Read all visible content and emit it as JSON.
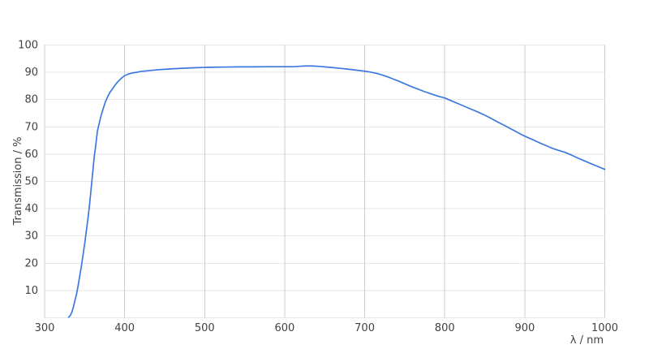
{
  "chart_data": {
    "type": "line",
    "title": "",
    "xlabel": "λ / nm",
    "ylabel": "Transmission / %",
    "xlim": [
      300,
      1000
    ],
    "ylim": [
      0,
      100
    ],
    "x_ticks": [
      300,
      400,
      500,
      600,
      700,
      800,
      900,
      1000
    ],
    "y_ticks": [
      10,
      20,
      30,
      40,
      50,
      60,
      70,
      80,
      90,
      100
    ],
    "grid": true,
    "legend": false,
    "series": [
      {
        "name": "transmission-curve",
        "color": "#3c78e0",
        "points": [
          [
            330,
            0.2
          ],
          [
            332,
            0.8
          ],
          [
            334,
            2
          ],
          [
            336,
            4
          ],
          [
            338,
            6.5
          ],
          [
            340,
            8.8
          ],
          [
            342,
            12
          ],
          [
            344,
            15.5
          ],
          [
            346,
            19
          ],
          [
            348,
            23
          ],
          [
            350,
            27
          ],
          [
            352,
            31.5
          ],
          [
            354,
            36
          ],
          [
            356,
            41
          ],
          [
            358,
            47
          ],
          [
            360,
            53
          ],
          [
            362,
            59
          ],
          [
            364,
            63.5
          ],
          [
            366,
            68.5
          ],
          [
            368,
            71
          ],
          [
            370,
            73.5
          ],
          [
            373,
            76.5
          ],
          [
            376,
            79.2
          ],
          [
            379,
            81.2
          ],
          [
            382,
            82.8
          ],
          [
            385,
            84
          ],
          [
            388,
            85.3
          ],
          [
            391,
            86.4
          ],
          [
            394,
            87.3
          ],
          [
            397,
            88.1
          ],
          [
            400,
            88.8
          ],
          [
            405,
            89.4
          ],
          [
            410,
            89.8
          ],
          [
            415,
            90.0
          ],
          [
            420,
            90.3
          ],
          [
            425,
            90.45
          ],
          [
            430,
            90.6
          ],
          [
            435,
            90.75
          ],
          [
            440,
            90.9
          ],
          [
            450,
            91.1
          ],
          [
            460,
            91.3
          ],
          [
            470,
            91.45
          ],
          [
            480,
            91.6
          ],
          [
            490,
            91.7
          ],
          [
            500,
            91.8
          ],
          [
            515,
            91.9
          ],
          [
            530,
            91.95
          ],
          [
            545,
            92
          ],
          [
            560,
            92
          ],
          [
            580,
            92.05
          ],
          [
            600,
            92.05
          ],
          [
            612,
            92.05
          ],
          [
            618,
            92.2
          ],
          [
            624,
            92.3
          ],
          [
            630,
            92.35
          ],
          [
            636,
            92.3
          ],
          [
            642,
            92.2
          ],
          [
            648,
            92.05
          ],
          [
            654,
            91.9
          ],
          [
            660,
            91.75
          ],
          [
            668,
            91.5
          ],
          [
            676,
            91.25
          ],
          [
            684,
            91
          ],
          [
            692,
            90.7
          ],
          [
            700,
            90.4
          ],
          [
            708,
            90.05
          ],
          [
            715,
            89.6
          ],
          [
            722,
            89
          ],
          [
            729,
            88.3
          ],
          [
            736,
            87.5
          ],
          [
            743,
            86.7
          ],
          [
            750,
            85.8
          ],
          [
            758,
            84.8
          ],
          [
            766,
            83.9
          ],
          [
            774,
            83
          ],
          [
            782,
            82.2
          ],
          [
            791,
            81.3
          ],
          [
            800,
            80.6
          ],
          [
            808,
            79.6
          ],
          [
            816,
            78.6
          ],
          [
            824,
            77.6
          ],
          [
            832,
            76.6
          ],
          [
            841,
            75.5
          ],
          [
            850,
            74.3
          ],
          [
            858,
            73.1
          ],
          [
            866,
            71.8
          ],
          [
            874,
            70.6
          ],
          [
            882,
            69.4
          ],
          [
            890,
            68.1
          ],
          [
            897,
            67
          ],
          [
            903,
            66.2
          ],
          [
            910,
            65.3
          ],
          [
            918,
            64.2
          ],
          [
            926,
            63.2
          ],
          [
            934,
            62.2
          ],
          [
            942,
            61.4
          ],
          [
            950,
            60.7
          ],
          [
            958,
            59.7
          ],
          [
            966,
            58.6
          ],
          [
            974,
            57.6
          ],
          [
            982,
            56.6
          ],
          [
            991,
            55.5
          ],
          [
            1000,
            54.4
          ]
        ]
      }
    ]
  },
  "style": {
    "background": "#ffffff",
    "h_grid_color": "#e6e6e6",
    "v_grid_color": "#cccccc",
    "text_color": "#424242",
    "line_color": "#3c78e0"
  }
}
